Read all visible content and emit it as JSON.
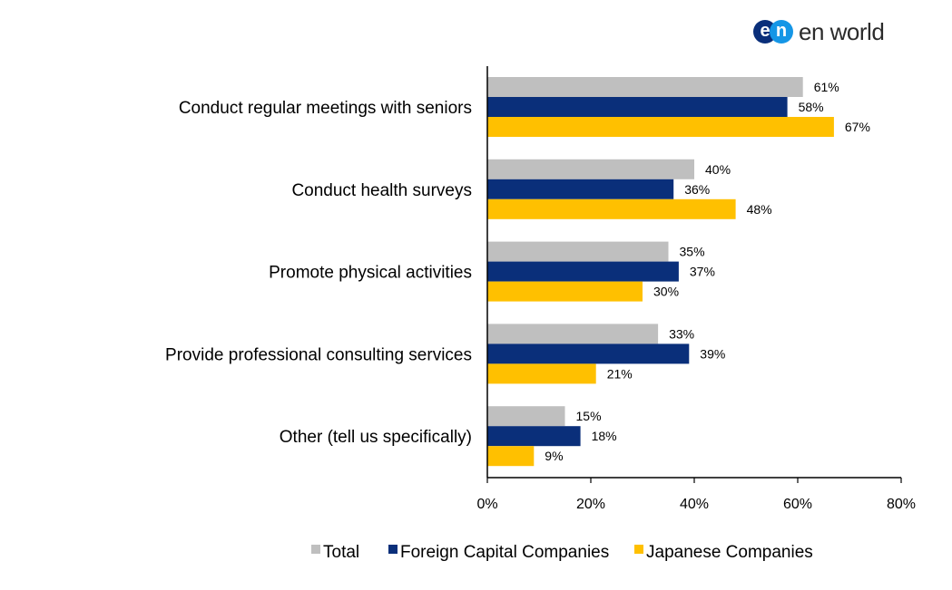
{
  "logo": {
    "mark_e": "e",
    "mark_n": "n",
    "text": "en world"
  },
  "chart_data": {
    "type": "bar",
    "orientation": "horizontal",
    "categories": [
      "Conduct regular meetings with seniors",
      "Conduct health surveys",
      "Promote physical activities",
      "Provide professional consulting services",
      "Other (tell us specifically)"
    ],
    "series": [
      {
        "name": "Total",
        "color": "#bfbfbf",
        "values": [
          61,
          40,
          35,
          33,
          15
        ]
      },
      {
        "name": "Foreign Capital Companies",
        "color": "#0a2f7a",
        "values": [
          58,
          36,
          37,
          39,
          18
        ]
      },
      {
        "name": "Japanese Companies",
        "color": "#ffc000",
        "values": [
          67,
          48,
          30,
          21,
          9
        ]
      }
    ],
    "value_suffix": "%",
    "xlim": [
      0,
      80
    ],
    "xticks": [
      0,
      20,
      40,
      60,
      80
    ],
    "xtick_labels": [
      "0%",
      "20%",
      "40%",
      "60%",
      "80%"
    ],
    "legend_position": "bottom",
    "grid": false
  }
}
